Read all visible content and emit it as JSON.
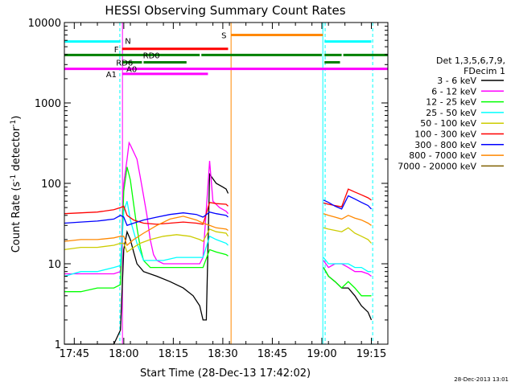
{
  "chart_data": {
    "type": "line",
    "title": "HESSI Observing Summary Count Rates",
    "xlabel": "Start Time (28-Dec-13 17:42:02)",
    "ylabel_main": "Count Rate (s",
    "ylabel_sup1": "-1",
    "ylabel_mid": " detector",
    "ylabel_sup2": "-1",
    "ylabel_end": ")",
    "x_scale": "time (minutes after 17:42:02)",
    "xlim": [
      0,
      98
    ],
    "x_ticks": [
      {
        "t": 3,
        "label": "17:45"
      },
      {
        "t": 18,
        "label": "18:00"
      },
      {
        "t": 33,
        "label": "18:15"
      },
      {
        "t": 48,
        "label": "18:30"
      },
      {
        "t": 63,
        "label": "18:45"
      },
      {
        "t": 78,
        "label": "19:00"
      },
      {
        "t": 93,
        "label": "19:15"
      }
    ],
    "y_scale": "log",
    "ylim": [
      1,
      10000
    ],
    "y_ticks": [
      {
        "v": 1,
        "label": "1"
      },
      {
        "v": 10,
        "label": "10"
      },
      {
        "v": 100,
        "label": "100"
      },
      {
        "v": 1000,
        "label": "1000"
      },
      {
        "v": 10000,
        "label": "10000"
      }
    ],
    "legend": {
      "placement": "right",
      "header": [
        "Det 1,3,5,6,7,9,",
        "FDecim 1"
      ]
    },
    "series": [
      {
        "name": "3 - 6 keV",
        "color": "#000000",
        "points": [
          [
            0,
            1.0
          ],
          [
            4,
            1.0
          ],
          [
            9,
            1.0
          ],
          [
            15,
            1.0
          ],
          [
            17,
            1.5
          ],
          [
            18,
            15
          ],
          [
            19,
            25
          ],
          [
            20,
            20
          ],
          [
            21,
            14
          ],
          [
            22,
            10
          ],
          [
            24,
            8
          ],
          [
            28,
            7
          ],
          [
            32,
            6
          ],
          [
            36,
            5
          ],
          [
            39,
            4
          ],
          [
            41,
            3
          ],
          [
            42,
            2
          ],
          [
            43,
            2
          ],
          [
            44,
            130
          ],
          [
            46,
            100
          ],
          [
            48,
            90
          ],
          [
            49,
            85
          ],
          [
            49.6,
            75
          ]
        ],
        "segments2": [
          [
            78.5,
            9
          ],
          [
            80,
            7
          ],
          [
            82,
            6
          ],
          [
            84,
            5
          ],
          [
            86,
            5
          ],
          [
            88,
            4
          ],
          [
            90,
            3
          ],
          [
            92,
            2.5
          ],
          [
            93,
            2
          ]
        ]
      },
      {
        "name": "6 - 12 keV",
        "color": "#ff00ff",
        "points": [
          [
            0,
            7.5
          ],
          [
            5,
            7.5
          ],
          [
            10,
            7.5
          ],
          [
            15,
            7.5
          ],
          [
            17,
            8
          ],
          [
            18,
            100
          ],
          [
            19,
            200
          ],
          [
            19.6,
            320
          ],
          [
            20,
            300
          ],
          [
            22,
            200
          ],
          [
            23,
            120
          ],
          [
            24,
            70
          ],
          [
            25,
            40
          ],
          [
            26,
            20
          ],
          [
            27,
            13
          ],
          [
            28,
            11
          ],
          [
            30,
            10
          ],
          [
            34,
            10
          ],
          [
            38,
            10
          ],
          [
            41,
            10
          ],
          [
            42,
            12
          ],
          [
            44,
            190
          ],
          [
            45,
            60
          ],
          [
            47,
            50
          ],
          [
            49,
            45
          ],
          [
            49.6,
            42
          ]
        ],
        "segments2": [
          [
            78.5,
            11
          ],
          [
            80,
            9
          ],
          [
            82,
            10
          ],
          [
            84,
            10
          ],
          [
            86,
            9
          ],
          [
            88,
            8
          ],
          [
            90,
            8
          ],
          [
            92,
            7.5
          ],
          [
            93,
            7
          ]
        ]
      },
      {
        "name": "12 - 25 keV",
        "color": "#00ff00",
        "points": [
          [
            0,
            4.5
          ],
          [
            5,
            4.5
          ],
          [
            10,
            5
          ],
          [
            15,
            5
          ],
          [
            17,
            5.5
          ],
          [
            18,
            80
          ],
          [
            19,
            160
          ],
          [
            20,
            110
          ],
          [
            21,
            55
          ],
          [
            22,
            28
          ],
          [
            23,
            16
          ],
          [
            24,
            11
          ],
          [
            26,
            9
          ],
          [
            30,
            9
          ],
          [
            34,
            9
          ],
          [
            38,
            9
          ],
          [
            41,
            9
          ],
          [
            42,
            9
          ],
          [
            44,
            15
          ],
          [
            46,
            14
          ],
          [
            49,
            13
          ],
          [
            49.6,
            12.5
          ]
        ],
        "segments2": [
          [
            78.5,
            9
          ],
          [
            80,
            7
          ],
          [
            82,
            6
          ],
          [
            84,
            5
          ],
          [
            86,
            6
          ],
          [
            88,
            5
          ],
          [
            90,
            4
          ],
          [
            92,
            4
          ],
          [
            93,
            4
          ]
        ]
      },
      {
        "name": "25 - 50 keV",
        "color": "#00ffff",
        "points": [
          [
            0,
            7
          ],
          [
            5,
            8
          ],
          [
            10,
            8
          ],
          [
            15,
            9
          ],
          [
            17,
            9.5
          ],
          [
            18,
            45
          ],
          [
            19,
            60
          ],
          [
            20,
            35
          ],
          [
            22,
            18
          ],
          [
            24,
            11
          ],
          [
            26,
            11
          ],
          [
            30,
            11
          ],
          [
            34,
            12
          ],
          [
            38,
            12
          ],
          [
            41,
            12
          ],
          [
            42,
            12
          ],
          [
            44,
            22
          ],
          [
            46,
            20
          ],
          [
            49,
            18
          ],
          [
            49.6,
            17
          ]
        ],
        "segments2": [
          [
            78.5,
            12
          ],
          [
            80,
            10
          ],
          [
            82,
            10
          ],
          [
            84,
            10
          ],
          [
            86,
            10
          ],
          [
            88,
            9
          ],
          [
            90,
            9
          ],
          [
            92,
            8
          ],
          [
            93,
            8
          ]
        ]
      },
      {
        "name": "50 - 100 keV",
        "color": "#cccc00",
        "points": [
          [
            0,
            15
          ],
          [
            5,
            16
          ],
          [
            10,
            16
          ],
          [
            15,
            17
          ],
          [
            17,
            18
          ],
          [
            18,
            18
          ],
          [
            19,
            14
          ],
          [
            21,
            16
          ],
          [
            23,
            18
          ],
          [
            26,
            20
          ],
          [
            30,
            22
          ],
          [
            34,
            23
          ],
          [
            38,
            22
          ],
          [
            41,
            20
          ],
          [
            42,
            19
          ],
          [
            44,
            27
          ],
          [
            46,
            25
          ],
          [
            49,
            24
          ],
          [
            49.6,
            22
          ]
        ],
        "segments2": [
          [
            78.5,
            28
          ],
          [
            80,
            27
          ],
          [
            82,
            26
          ],
          [
            84,
            25
          ],
          [
            86,
            28
          ],
          [
            88,
            24
          ],
          [
            90,
            22
          ],
          [
            92,
            20
          ],
          [
            93,
            18
          ]
        ]
      },
      {
        "name": "100 - 300 keV",
        "color": "#ff0000",
        "points": [
          [
            0,
            42
          ],
          [
            5,
            43
          ],
          [
            10,
            44
          ],
          [
            15,
            47
          ],
          [
            17,
            50
          ],
          [
            18,
            52
          ],
          [
            19,
            40
          ],
          [
            21,
            35
          ],
          [
            24,
            32
          ],
          [
            28,
            31
          ],
          [
            32,
            32
          ],
          [
            36,
            33
          ],
          [
            40,
            32
          ],
          [
            42,
            31
          ],
          [
            44,
            58
          ],
          [
            46,
            56
          ],
          [
            49,
            55
          ],
          [
            49.6,
            52
          ]
        ],
        "segments2": [
          [
            78.5,
            57
          ],
          [
            80,
            55
          ],
          [
            82,
            53
          ],
          [
            84,
            51
          ],
          [
            86,
            85
          ],
          [
            88,
            78
          ],
          [
            90,
            72
          ],
          [
            92,
            66
          ],
          [
            93,
            62
          ]
        ]
      },
      {
        "name": "300 - 800 keV",
        "color": "#0000ff",
        "points": [
          [
            0,
            32
          ],
          [
            5,
            33
          ],
          [
            10,
            34
          ],
          [
            15,
            36
          ],
          [
            17,
            40
          ],
          [
            18,
            38
          ],
          [
            19,
            30
          ],
          [
            21,
            32
          ],
          [
            24,
            35
          ],
          [
            28,
            38
          ],
          [
            32,
            41
          ],
          [
            36,
            43
          ],
          [
            40,
            41
          ],
          [
            42,
            38
          ],
          [
            44,
            44
          ],
          [
            46,
            42
          ],
          [
            49,
            40
          ],
          [
            49.6,
            38
          ]
        ],
        "segments2": [
          [
            78.5,
            62
          ],
          [
            80,
            58
          ],
          [
            82,
            52
          ],
          [
            84,
            48
          ],
          [
            86,
            70
          ],
          [
            88,
            64
          ],
          [
            90,
            58
          ],
          [
            92,
            53
          ],
          [
            93,
            48
          ]
        ]
      },
      {
        "name": "800 - 7000 keV",
        "color": "#ff8800",
        "points": [
          [
            0,
            19
          ],
          [
            5,
            20
          ],
          [
            10,
            20
          ],
          [
            15,
            21
          ],
          [
            17,
            22
          ],
          [
            18,
            22
          ],
          [
            19,
            17
          ],
          [
            21,
            20
          ],
          [
            24,
            24
          ],
          [
            28,
            30
          ],
          [
            32,
            36
          ],
          [
            36,
            39
          ],
          [
            40,
            35
          ],
          [
            42,
            32
          ],
          [
            44,
            30
          ],
          [
            46,
            28
          ],
          [
            49,
            27
          ],
          [
            49.6,
            26
          ]
        ],
        "segments2": [
          [
            78.5,
            42
          ],
          [
            80,
            40
          ],
          [
            82,
            38
          ],
          [
            84,
            36
          ],
          [
            86,
            40
          ],
          [
            88,
            37
          ],
          [
            90,
            35
          ],
          [
            92,
            32
          ],
          [
            93,
            30
          ]
        ]
      },
      {
        "name": "7000 - 20000 keV",
        "color": "#806000",
        "points": [],
        "segments2": []
      }
    ],
    "state_bars": [
      {
        "label": "N",
        "color": "#00ffff",
        "level": 5800,
        "segments": [
          [
            0,
            17
          ],
          [
            78.8,
            93
          ]
        ]
      },
      {
        "label": "F",
        "color": "#ff0000",
        "level": 4700,
        "segments": [
          [
            17.5,
            49.6
          ]
        ]
      },
      {
        "label": "S",
        "color": "#ff8800",
        "level": 7000,
        "segments": [
          [
            50.5,
            78.3
          ]
        ]
      },
      {
        "label": "RD0",
        "color": "#008000",
        "level": 3950,
        "segments": [
          [
            0,
            41
          ],
          [
            41.5,
            78
          ],
          [
            78.8,
            84
          ],
          [
            84.5,
            98
          ]
        ]
      },
      {
        "label": "RD6",
        "color": "#008000",
        "level": 3200,
        "segments": [
          [
            17.5,
            23.5
          ],
          [
            24,
            37
          ],
          [
            78.8,
            83.5
          ]
        ]
      },
      {
        "label": "A0",
        "color": "#ff00ff",
        "level": 2650,
        "segments": [
          [
            0,
            98
          ]
        ]
      },
      {
        "label": "A1",
        "color": "#ff00ff",
        "level": 2300,
        "segments": [
          [
            17.5,
            43.5
          ]
        ]
      }
    ],
    "vertical_markers": [
      {
        "t": 0,
        "color": "#00ffff",
        "style": "solid"
      },
      {
        "t": 16.8,
        "color": "#00ffff",
        "style": "dashed"
      },
      {
        "t": 17.6,
        "color": "#ff00ff",
        "style": "solid"
      },
      {
        "t": 50.5,
        "color": "#ff8800",
        "style": "solid"
      },
      {
        "t": 78.3,
        "color": "#00ffff",
        "style": "solid"
      },
      {
        "t": 79.0,
        "color": "#00ffff",
        "style": "dashed"
      },
      {
        "t": 93.4,
        "color": "#00ffff",
        "style": "dashed"
      }
    ]
  },
  "footer_date": "28-Dec-2013 13:01"
}
